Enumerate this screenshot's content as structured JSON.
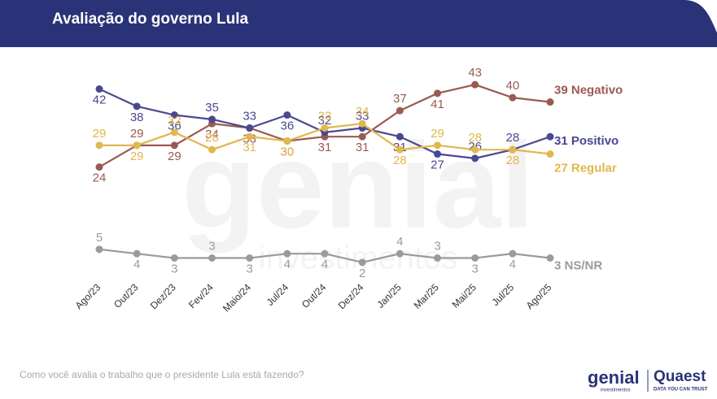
{
  "chart_data": {
    "type": "line",
    "title": "Avaliação do governo Lula",
    "note": "Como você avalia o trabalho que o presidente Lula está fazendo?",
    "categories": [
      "Ago/23",
      "Out/23",
      "Dez/23",
      "Fev/24",
      "Maio/24",
      "Jul/24",
      "Out/24",
      "Dez/24",
      "Jan/25",
      "Mar/25",
      "Mai/25",
      "Jul/25",
      "Ago/25"
    ],
    "series": [
      {
        "name": "Negativo",
        "color": "#9a5a52",
        "values": [
          24,
          29,
          29,
          34,
          33,
          30,
          31,
          31,
          37,
          41,
          43,
          40,
          39
        ]
      },
      {
        "name": "Positivo",
        "color": "#4a4890",
        "values": [
          42,
          38,
          36,
          35,
          33,
          36,
          32,
          33,
          31,
          27,
          26,
          28,
          31
        ]
      },
      {
        "name": "Regular",
        "color": "#e0b84c",
        "values": [
          29,
          29,
          32,
          28,
          31,
          30,
          33,
          34,
          28,
          29,
          28,
          28,
          27
        ]
      },
      {
        "name": "NS/NR",
        "color": "#9b9b9b",
        "values": [
          5,
          4,
          3,
          3,
          3,
          4,
          4,
          2,
          4,
          3,
          3,
          4,
          3
        ]
      }
    ]
  },
  "watermark": [
    "genial",
    "investimentos"
  ],
  "logos": {
    "genial": "genial",
    "genial_sub": "investimentos",
    "quaest": "Quaest",
    "quaest_sub": "DATA YOU CAN TRUST"
  }
}
